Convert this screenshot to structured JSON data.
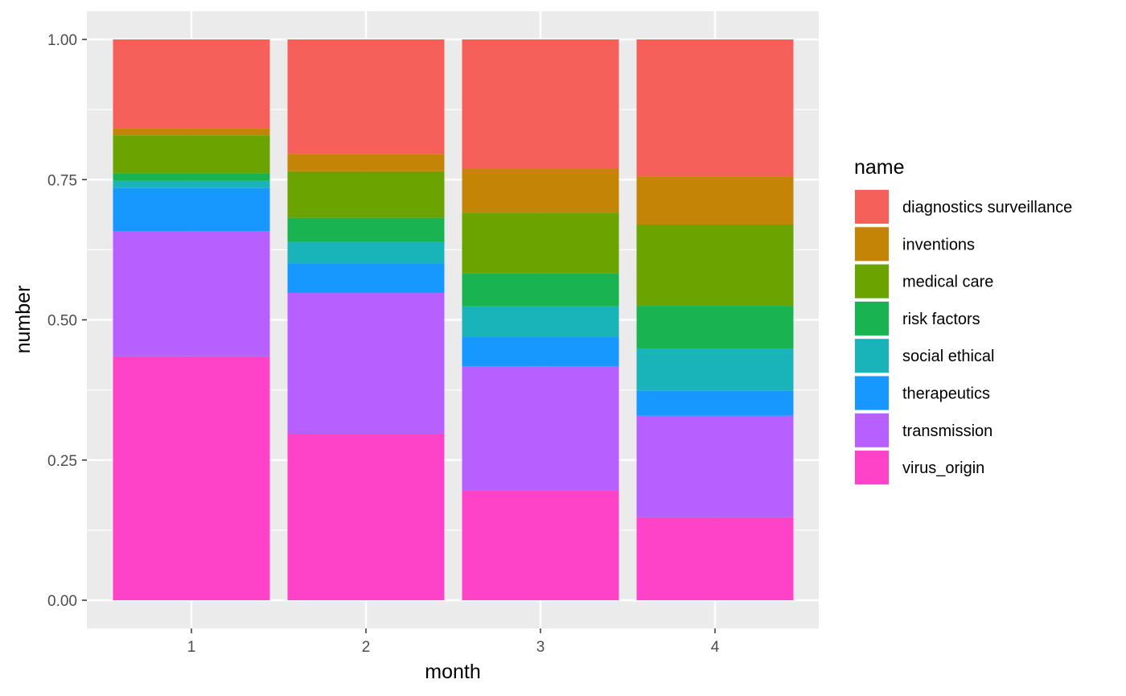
{
  "chart_data": {
    "type": "bar",
    "stacked": true,
    "categories": [
      "1",
      "2",
      "3",
      "4"
    ],
    "xlabel": "month",
    "ylabel": "number",
    "ylim": [
      0,
      1
    ],
    "yticks": [
      "0.00",
      "0.25",
      "0.50",
      "0.75",
      "1.00"
    ],
    "ytick_values": [
      0,
      0.25,
      0.5,
      0.75,
      1.0
    ],
    "grid": true,
    "legend": {
      "title": "name",
      "position": "right"
    },
    "series": [
      {
        "name": "virus_origin",
        "color": "#FF43C8",
        "values": [
          0.435,
          0.297,
          0.196,
          0.148
        ]
      },
      {
        "name": "transmission",
        "color": "#B760FF",
        "values": [
          0.223,
          0.251,
          0.221,
          0.181
        ]
      },
      {
        "name": "therapeutics",
        "color": "#1798FF",
        "values": [
          0.077,
          0.053,
          0.053,
          0.045
        ]
      },
      {
        "name": "social ethical",
        "color": "#18B4B9",
        "values": [
          0.013,
          0.038,
          0.054,
          0.075
        ]
      },
      {
        "name": "risk factors",
        "color": "#19B451",
        "values": [
          0.013,
          0.043,
          0.059,
          0.076
        ]
      },
      {
        "name": "medical care",
        "color": "#6BA300",
        "values": [
          0.068,
          0.083,
          0.108,
          0.145
        ]
      },
      {
        "name": "inventions",
        "color": "#C48406",
        "values": [
          0.013,
          0.031,
          0.078,
          0.086
        ]
      },
      {
        "name": "diagnostics surveillance",
        "color": "#F5605B",
        "values": [
          0.158,
          0.204,
          0.231,
          0.244
        ]
      }
    ]
  }
}
